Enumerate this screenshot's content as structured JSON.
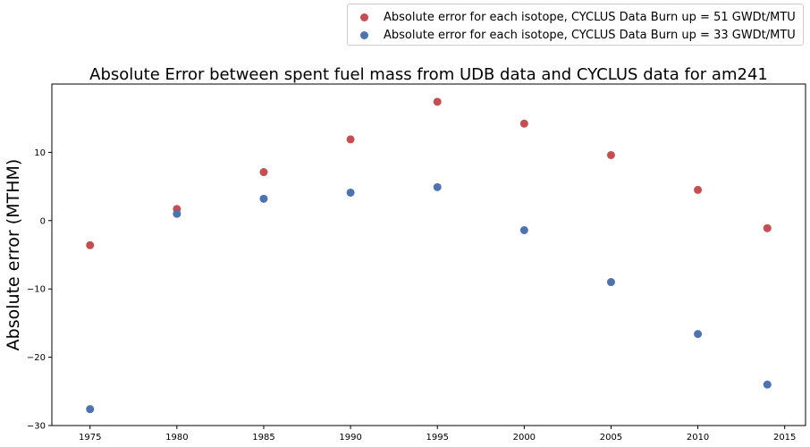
{
  "chart_data": {
    "type": "scatter",
    "title": "Absolute Error between spent fuel mass from UDB data and CYCLUS data for am241",
    "xlabel": "",
    "ylabel": "Absolute error (MTHM)",
    "xlim": [
      1972.8,
      2016.2
    ],
    "ylim": [
      -30,
      20
    ],
    "xticks": [
      1975,
      1980,
      1985,
      1990,
      1995,
      2000,
      2005,
      2010,
      2015
    ],
    "yticks": [
      -30,
      -20,
      -10,
      0,
      10
    ],
    "ytick_labels": [
      "−30",
      "−20",
      "−10",
      "0",
      "10"
    ],
    "grid": false,
    "legend_placement": "above-right",
    "series": [
      {
        "name": "Absolute error for each isotope, CYCLUS Data Burn up = 51 GWDt/MTU",
        "color": "#c44e52",
        "x": [
          1975,
          1980,
          1985,
          1990,
          1995,
          2000,
          2005,
          2010,
          2014
        ],
        "y": [
          -3.6,
          1.7,
          7.1,
          11.9,
          17.4,
          14.2,
          9.6,
          4.5,
          -1.1
        ]
      },
      {
        "name": "Absolute error for each isotope, CYCLUS Data Burn up = 33 GWDt/MTU",
        "color": "#4c72b0",
        "x": [
          1975,
          1980,
          1985,
          1990,
          1995,
          2000,
          2005,
          2010,
          2014
        ],
        "y": [
          -27.6,
          1.0,
          3.2,
          4.1,
          4.9,
          -1.4,
          -9.0,
          -16.6,
          -24.0
        ]
      }
    ]
  }
}
